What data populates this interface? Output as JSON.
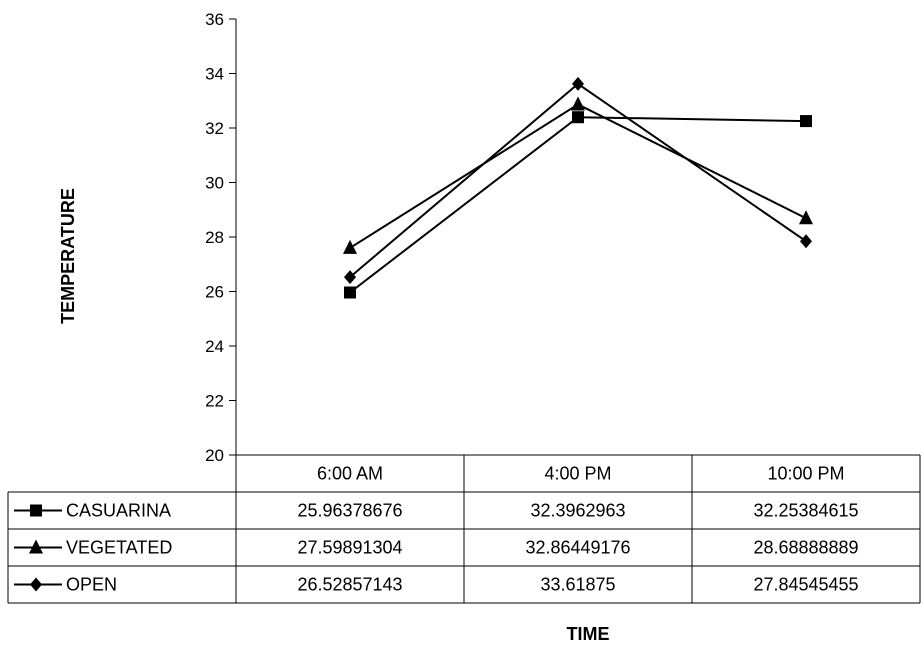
{
  "chart_data": {
    "type": "line",
    "categories": [
      "6:00 AM",
      "4:00 PM",
      "10:00 PM"
    ],
    "series": [
      {
        "name": "CASUARINA",
        "marker": "square",
        "values": [
          25.96378676,
          32.3962963,
          32.25384615
        ],
        "labels": [
          "25.96378676",
          "32.3962963",
          "32.25384615"
        ]
      },
      {
        "name": "VEGETATED",
        "marker": "triangle",
        "values": [
          27.59891304,
          32.86449176,
          28.68888889
        ],
        "labels": [
          "27.59891304",
          "32.86449176",
          "28.68888889"
        ]
      },
      {
        "name": "OPEN",
        "marker": "diamond",
        "values": [
          26.52857143,
          33.61875,
          27.84545455
        ],
        "labels": [
          "26.52857143",
          "33.61875",
          "27.84545455"
        ]
      }
    ],
    "ylabel": "TEMPERATURE",
    "xlabel": "TIME",
    "ylim": [
      20,
      36
    ],
    "yticks": [
      "20",
      "22",
      "24",
      "26",
      "28",
      "30",
      "32",
      "34",
      "36"
    ],
    "legend": "data-table",
    "grid": false,
    "line_color": "#000000"
  }
}
